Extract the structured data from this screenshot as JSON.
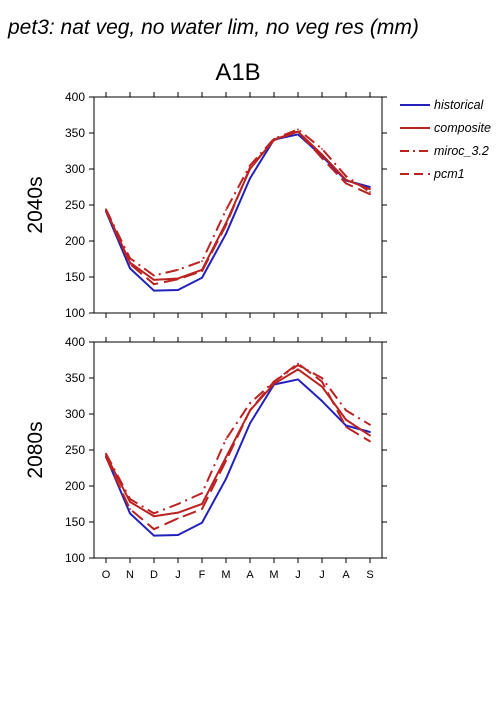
{
  "figure": {
    "title": "pet3: nat veg, no water lim, no veg res (mm)",
    "scenario": "A1B"
  },
  "legend": [
    "historical",
    "composite",
    "miroc_3.2",
    "pcm1"
  ],
  "colors": {
    "historical": "#2222bb",
    "scenario": "#bb2222"
  },
  "chart_data": [
    {
      "type": "line",
      "panel_label": "2040s",
      "categories": [
        "O",
        "N",
        "D",
        "J",
        "F",
        "M",
        "A",
        "M",
        "J",
        "J",
        "A",
        "S"
      ],
      "ylim": [
        100,
        400
      ],
      "yticks": [
        100,
        150,
        200,
        250,
        300,
        350,
        400
      ],
      "legend_position": "right",
      "series": [
        {
          "name": "historical",
          "style": "solid",
          "color": "#2222bb",
          "values": [
            241,
            162,
            131,
            132,
            149,
            210,
            287,
            341,
            348,
            318,
            284,
            275
          ]
        },
        {
          "name": "composite",
          "style": "solid",
          "color": "#bb2222",
          "values": [
            243,
            170,
            146,
            148,
            160,
            225,
            300,
            341,
            352,
            320,
            285,
            272
          ]
        },
        {
          "name": "miroc_3.2",
          "style": "dashdot",
          "color": "#bb2222",
          "values": [
            244,
            176,
            152,
            160,
            172,
            243,
            305,
            342,
            355,
            328,
            290,
            268
          ]
        },
        {
          "name": "pcm1",
          "style": "dashed",
          "color": "#bb2222",
          "values": [
            242,
            168,
            140,
            147,
            158,
            222,
            302,
            340,
            352,
            315,
            280,
            265
          ]
        }
      ]
    },
    {
      "type": "line",
      "panel_label": "2080s",
      "categories": [
        "O",
        "N",
        "D",
        "J",
        "F",
        "M",
        "A",
        "M",
        "J",
        "J",
        "A",
        "S"
      ],
      "ylim": [
        100,
        400
      ],
      "yticks": [
        100,
        150,
        200,
        250,
        300,
        350,
        400
      ],
      "legend_position": "none",
      "series": [
        {
          "name": "historical",
          "style": "solid",
          "color": "#2222bb",
          "values": [
            241,
            162,
            131,
            132,
            149,
            210,
            287,
            341,
            348,
            318,
            284,
            275
          ]
        },
        {
          "name": "composite",
          "style": "solid",
          "color": "#bb2222",
          "values": [
            243,
            178,
            158,
            163,
            175,
            240,
            305,
            342,
            362,
            338,
            292,
            270
          ]
        },
        {
          "name": "miroc_3.2",
          "style": "dashdot",
          "color": "#bb2222",
          "values": [
            245,
            182,
            162,
            175,
            190,
            265,
            315,
            345,
            368,
            350,
            305,
            285
          ]
        },
        {
          "name": "pcm1",
          "style": "dashed",
          "color": "#bb2222",
          "values": [
            240,
            168,
            140,
            155,
            168,
            235,
            305,
            345,
            370,
            345,
            282,
            262
          ]
        }
      ]
    }
  ]
}
